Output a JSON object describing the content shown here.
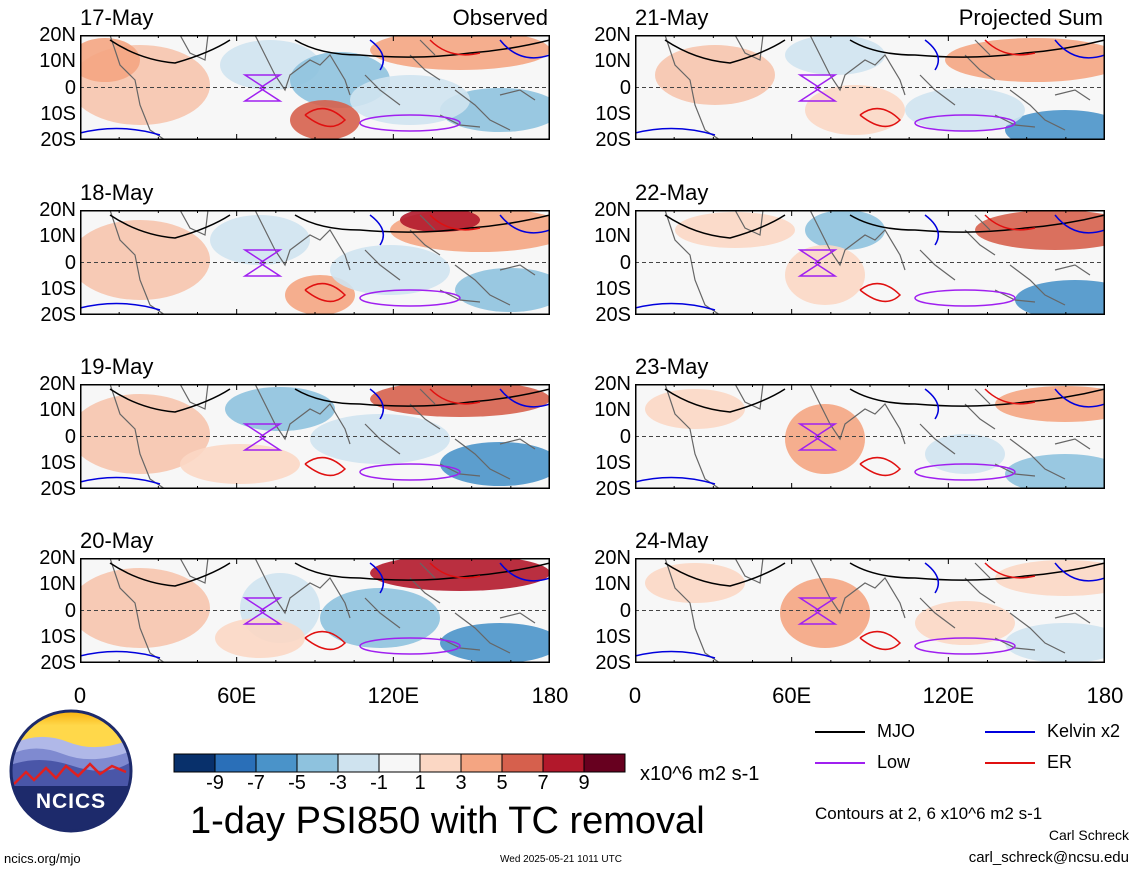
{
  "titles": {
    "left_column": "Observed",
    "right_column": "Projected Sum"
  },
  "panels": [
    {
      "date": "17-May",
      "column": "left",
      "row": 0
    },
    {
      "date": "18-May",
      "column": "left",
      "row": 1
    },
    {
      "date": "19-May",
      "column": "left",
      "row": 2
    },
    {
      "date": "20-May",
      "column": "left",
      "row": 3
    },
    {
      "date": "21-May",
      "column": "right",
      "row": 0
    },
    {
      "date": "22-May",
      "column": "right",
      "row": 1
    },
    {
      "date": "23-May",
      "column": "right",
      "row": 2
    },
    {
      "date": "24-May",
      "column": "right",
      "row": 3
    }
  ],
  "axes": {
    "lat_labels": [
      "20N",
      "10N",
      "0",
      "10S",
      "20S"
    ],
    "lon_labels": [
      "0",
      "60E",
      "120E",
      "180"
    ]
  },
  "colorbar": {
    "ticks": [
      "-9",
      "-7",
      "-5",
      "-3",
      "-1",
      "1",
      "3",
      "5",
      "7",
      "9"
    ],
    "colors": [
      "#08306b",
      "#2a6fb8",
      "#4a93c9",
      "#8ec2de",
      "#cfe3ef",
      "#f7f7f7",
      "#fbd7c4",
      "#f4a582",
      "#d6604d",
      "#b2182b",
      "#67001f"
    ],
    "units": "x10^6 m2 s-1"
  },
  "title": "1-day PSI850 with TC removal",
  "legend": {
    "items": [
      {
        "label": "MJO",
        "color": "#000000"
      },
      {
        "label": "Kelvin x2",
        "color": "#0000dd"
      },
      {
        "label": "Low",
        "color": "#a020f0"
      },
      {
        "label": "ER",
        "color": "#e01010"
      }
    ]
  },
  "contours_note": "Contours at 2, 6 x10^6 m2 s-1",
  "logo_text": "NCICS",
  "author": "Carl Schreck",
  "email": "carl_schreck@ncsu.edu",
  "site": "ncics.org/mjo",
  "timestamp": "Wed 2025-05-21 1011 UTC"
}
